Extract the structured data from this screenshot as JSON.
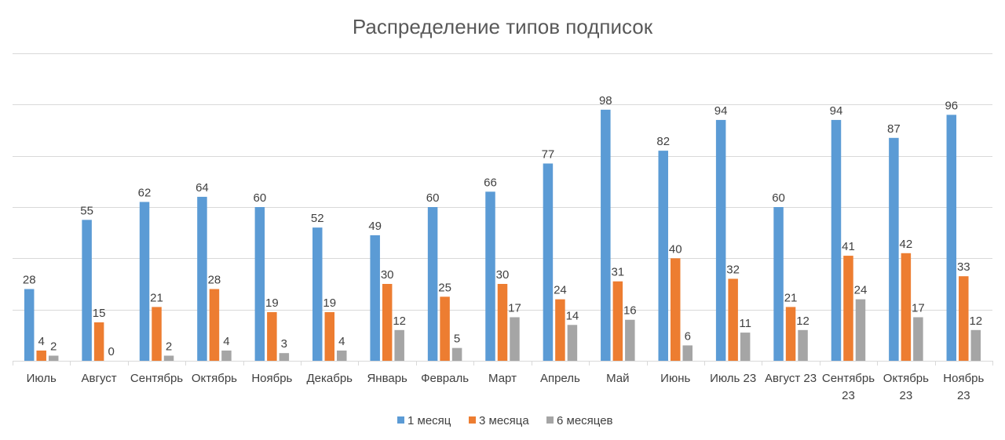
{
  "chart_data": {
    "type": "bar",
    "title": "Распределение типов подписок",
    "xlabel": "",
    "ylabel": "",
    "ylim": [
      0,
      120
    ],
    "grid": true,
    "legend_position": "bottom",
    "categories": [
      [
        "Июль"
      ],
      [
        "Август"
      ],
      [
        "Сентябрь"
      ],
      [
        "Октябрь"
      ],
      [
        "Ноябрь"
      ],
      [
        "Декабрь"
      ],
      [
        "Январь"
      ],
      [
        "Февраль"
      ],
      [
        "Март"
      ],
      [
        "Апрель"
      ],
      [
        "Май"
      ],
      [
        "Июнь"
      ],
      [
        "Июль 23"
      ],
      [
        "Август 23"
      ],
      [
        "Сентябрь",
        "23"
      ],
      [
        "Октябрь",
        "23"
      ],
      [
        "Ноябрь",
        "23"
      ]
    ],
    "series": [
      {
        "name": "1 месяц",
        "color": "#5B9BD5",
        "values": [
          28,
          55,
          62,
          64,
          60,
          52,
          49,
          60,
          66,
          77,
          98,
          82,
          94,
          60,
          94,
          87,
          96
        ]
      },
      {
        "name": "3 месяца",
        "color": "#ED7D31",
        "values": [
          4,
          15,
          21,
          28,
          19,
          19,
          30,
          25,
          30,
          24,
          31,
          40,
          32,
          21,
          41,
          42,
          33
        ]
      },
      {
        "name": "6 месяцев",
        "color": "#A5A5A5",
        "values": [
          2,
          0,
          2,
          4,
          3,
          4,
          12,
          5,
          17,
          14,
          16,
          6,
          11,
          12,
          24,
          17,
          12
        ]
      }
    ]
  }
}
